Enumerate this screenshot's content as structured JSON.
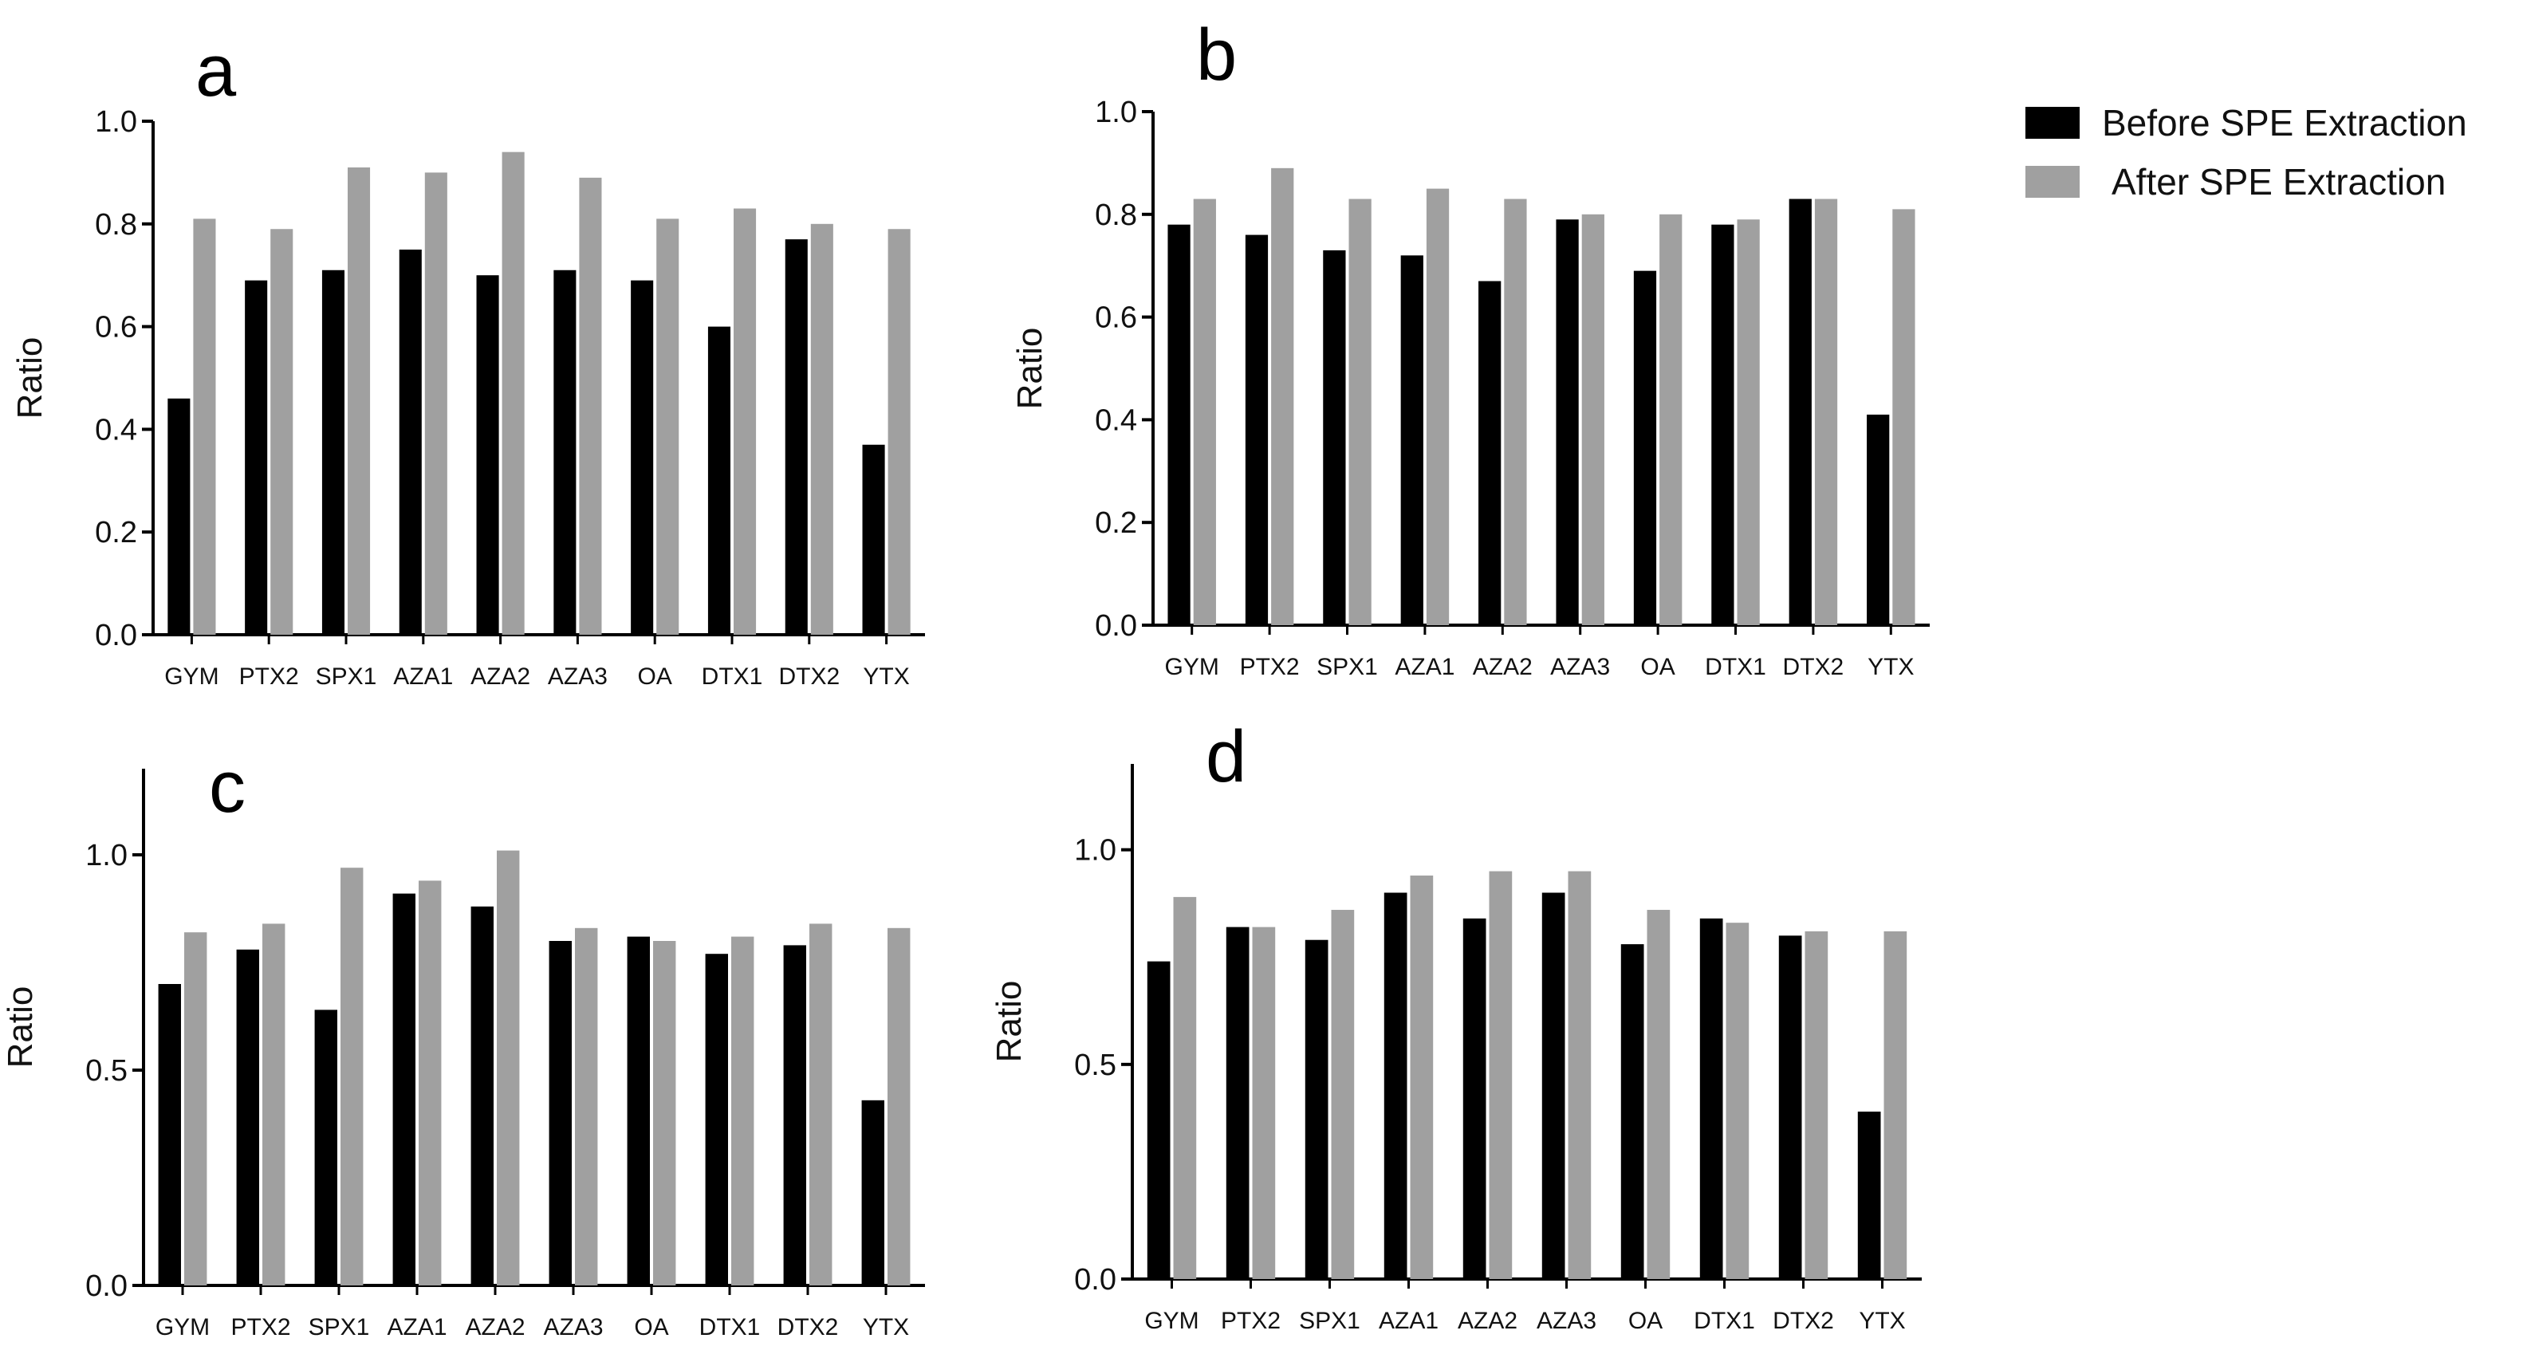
{
  "legend": {
    "before_label": "Before SPE Extraction",
    "after_label": "After SPE Extraction",
    "before_color": "#000000",
    "after_color": "#a0a0a0"
  },
  "chart_data": [
    {
      "type": "bar",
      "title": "a",
      "xlabel": "",
      "ylabel": "Ratio",
      "ylim": [
        0,
        1.0
      ],
      "yticks": [
        "0.0",
        "0.2",
        "0.4",
        "0.6",
        "0.8",
        "1.0"
      ],
      "categories": [
        "GYM",
        "PTX2",
        "SPX1",
        "AZA1",
        "AZA2",
        "AZA3",
        "OA",
        "DTX1",
        "DTX2",
        "YTX"
      ],
      "series": [
        {
          "name": "Before SPE Extraction",
          "values": [
            0.46,
            0.69,
            0.71,
            0.75,
            0.7,
            0.71,
            0.69,
            0.6,
            0.77,
            0.37
          ]
        },
        {
          "name": "After SPE Extraction",
          "values": [
            0.81,
            0.79,
            0.91,
            0.9,
            0.94,
            0.89,
            0.81,
            0.83,
            0.8,
            0.79
          ]
        }
      ]
    },
    {
      "type": "bar",
      "title": "b",
      "xlabel": "",
      "ylabel": "Ratio",
      "ylim": [
        0,
        1.0
      ],
      "yticks": [
        "0.0",
        "0.2",
        "0.4",
        "0.6",
        "0.8",
        "1.0"
      ],
      "categories": [
        "GYM",
        "PTX2",
        "SPX1",
        "AZA1",
        "AZA2",
        "AZA3",
        "OA",
        "DTX1",
        "DTX2",
        "YTX"
      ],
      "series": [
        {
          "name": "Before SPE Extraction",
          "values": [
            0.78,
            0.76,
            0.73,
            0.72,
            0.67,
            0.79,
            0.69,
            0.78,
            0.83,
            0.41
          ]
        },
        {
          "name": "After SPE Extraction",
          "values": [
            0.83,
            0.89,
            0.83,
            0.85,
            0.83,
            0.8,
            0.8,
            0.79,
            0.83,
            0.81
          ]
        }
      ]
    },
    {
      "type": "bar",
      "title": "c",
      "xlabel": "",
      "ylabel": "Ratio",
      "ylim": [
        0,
        1.2
      ],
      "yticks": [
        "0.0",
        "0.5",
        "1.0"
      ],
      "categories": [
        "GYM",
        "PTX2",
        "SPX1",
        "AZA1",
        "AZA2",
        "AZA3",
        "OA",
        "DTX1",
        "DTX2",
        "YTX"
      ],
      "series": [
        {
          "name": "Before SPE Extraction",
          "values": [
            0.7,
            0.78,
            0.64,
            0.91,
            0.88,
            0.8,
            0.81,
            0.77,
            0.79,
            0.43
          ]
        },
        {
          "name": "After SPE Extraction",
          "values": [
            0.82,
            0.84,
            0.97,
            0.94,
            1.01,
            0.83,
            0.8,
            0.81,
            0.84,
            0.83
          ]
        }
      ]
    },
    {
      "type": "bar",
      "title": "d",
      "xlabel": "",
      "ylabel": "Ratio",
      "ylim": [
        0,
        1.2
      ],
      "yticks": [
        "0.0",
        "0.5",
        "1.0"
      ],
      "categories": [
        "GYM",
        "PTX2",
        "SPX1",
        "AZA1",
        "AZA2",
        "AZA3",
        "OA",
        "DTX1",
        "DTX2",
        "YTX"
      ],
      "series": [
        {
          "name": "Before SPE Extraction",
          "values": [
            0.74,
            0.82,
            0.79,
            0.9,
            0.84,
            0.9,
            0.78,
            0.84,
            0.8,
            0.39
          ]
        },
        {
          "name": "After SPE Extraction",
          "values": [
            0.89,
            0.82,
            0.86,
            0.94,
            0.95,
            0.95,
            0.86,
            0.83,
            0.81,
            0.81
          ]
        }
      ]
    }
  ]
}
